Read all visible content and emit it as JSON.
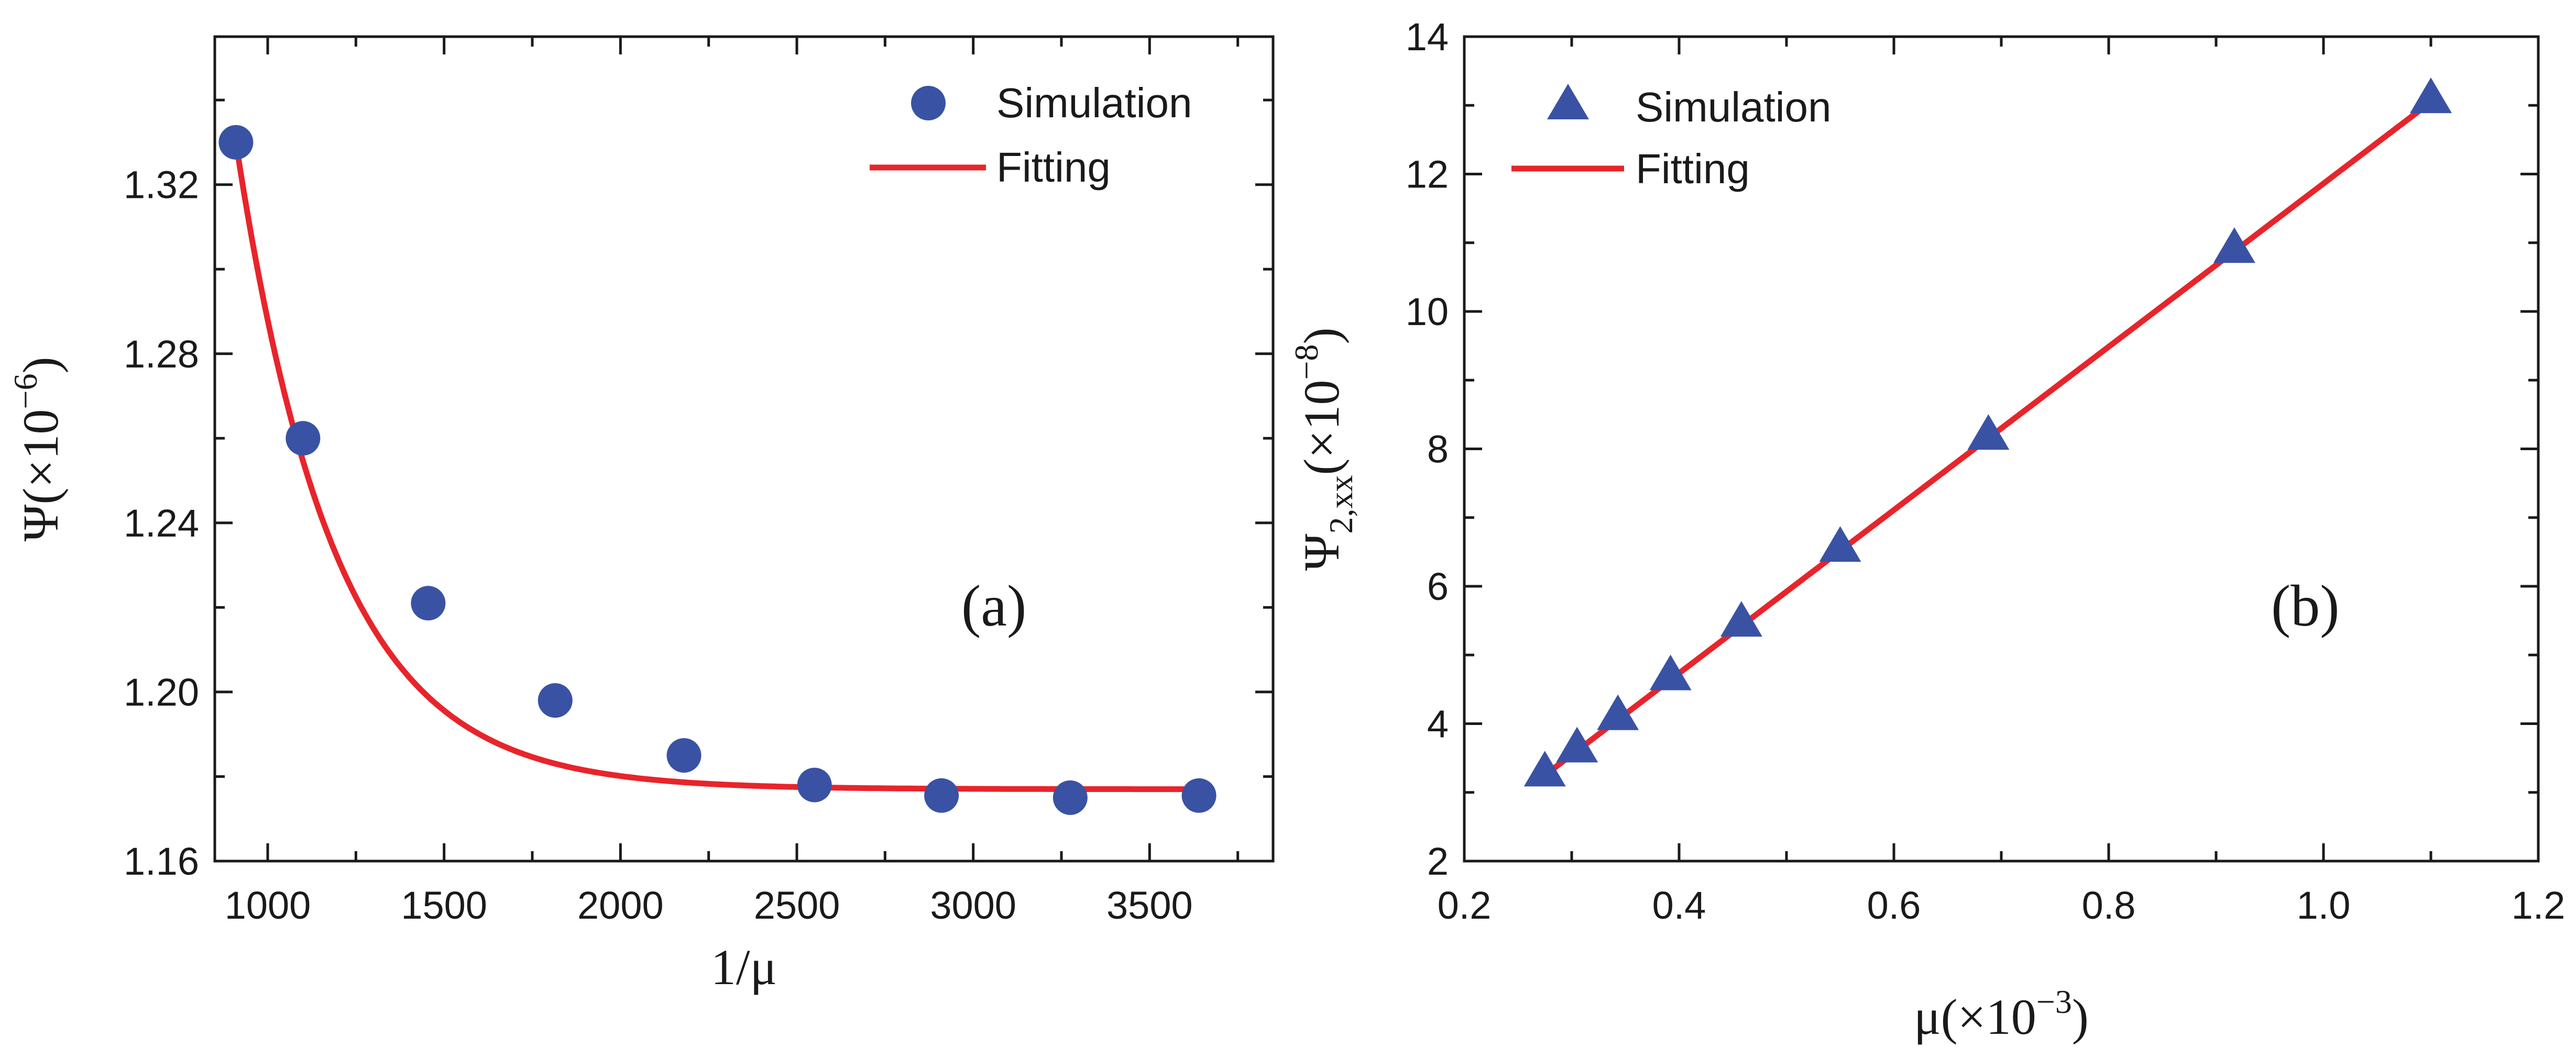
{
  "chart_data": [
    {
      "type": "scatter",
      "panel_label": "(a)",
      "xlabel": "1/μ",
      "ylabel": {
        "base": "Ψ(×10",
        "sup": "−6",
        "close": ")"
      },
      "xlim": [
        850,
        3850
      ],
      "ylim": [
        1.16,
        1.355
      ],
      "xticks": [
        1000,
        1500,
        2000,
        2500,
        3000,
        3500
      ],
      "yticks": [
        1.16,
        1.2,
        1.24,
        1.28,
        1.32
      ],
      "xtick_labels": [
        "1000",
        "1500",
        "2000",
        "2500",
        "3000",
        "3500"
      ],
      "ytick_labels": [
        "1.16",
        "1.20",
        "1.24",
        "1.28",
        "1.32"
      ],
      "series": [
        {
          "name": "Simulation",
          "marker": "circle",
          "x": [
            910,
            1100,
            1455,
            1815,
            2180,
            2550,
            2910,
            3275,
            3640
          ],
          "y": [
            1.33,
            1.26,
            1.221,
            1.198,
            1.185,
            1.178,
            1.1755,
            1.175,
            1.1755
          ]
        },
        {
          "name": "Fitting",
          "style": "line",
          "model": {
            "kind": "exp_decay",
            "y0": 1.177,
            "A": 0.153,
            "x0": 910,
            "t": 280
          },
          "x_range": [
            910,
            3640
          ]
        }
      ],
      "legend": "top-right",
      "colors": {
        "marker": "#3a52a4",
        "fit": "#e8242b",
        "axis": "#1a1a1a"
      }
    },
    {
      "type": "scatter",
      "panel_label": "(b)",
      "xlabel": {
        "base": "μ(×10",
        "sup": "−3",
        "close": ")"
      },
      "ylabel": {
        "base": "Ψ",
        "sub": "2,xx",
        "mid": "(×10",
        "sup": "−8",
        "close": ")"
      },
      "xlim": [
        0.2,
        1.2
      ],
      "ylim": [
        2,
        14
      ],
      "xticks": [
        0.2,
        0.4,
        0.6,
        0.8,
        1.0,
        1.2
      ],
      "yticks": [
        2,
        4,
        6,
        8,
        10,
        12,
        14
      ],
      "xtick_labels": [
        "0.2",
        "0.4",
        "0.6",
        "0.8",
        "1.0",
        "1.2"
      ],
      "ytick_labels": [
        "2",
        "4",
        "6",
        "8",
        "10",
        "12",
        "14"
      ],
      "series": [
        {
          "name": "Simulation",
          "marker": "triangle",
          "x": [
            0.275,
            0.305,
            0.343,
            0.392,
            0.458,
            0.55,
            0.688,
            0.917,
            1.1
          ],
          "y": [
            3.3,
            3.65,
            4.12,
            4.7,
            5.48,
            6.57,
            8.2,
            10.92,
            13.1
          ]
        },
        {
          "name": "Fitting",
          "style": "line",
          "x": [
            0.275,
            1.1
          ],
          "y": [
            3.25,
            13.05
          ]
        }
      ],
      "legend": "top-left",
      "colors": {
        "marker": "#3a52a4",
        "fit": "#e8242b",
        "axis": "#1a1a1a"
      }
    }
  ]
}
